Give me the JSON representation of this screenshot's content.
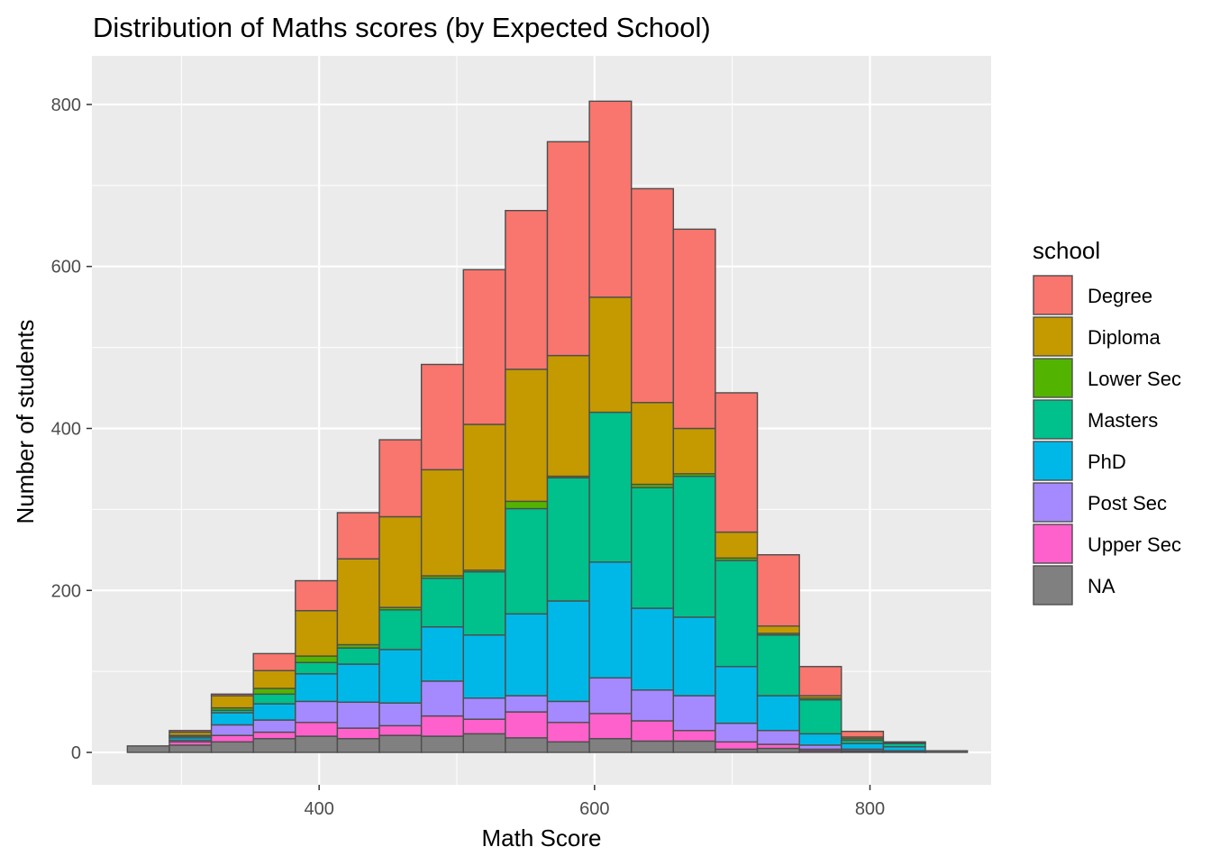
{
  "chart_data": {
    "type": "bar",
    "stacked": true,
    "title": "Distribution of Maths scores (by Expected School)",
    "xlabel": "Math Score",
    "ylabel": "Number of students",
    "xlim": [
      235,
      888
    ],
    "ylim": [
      -40,
      860
    ],
    "x_ticks": [
      400,
      600,
      800
    ],
    "y_ticks": [
      0,
      200,
      400,
      600,
      800
    ],
    "grid": true,
    "legend_title": "school",
    "legend_position": "right",
    "bin_width": 30.5,
    "x": [
      276.0,
      306.5,
      337.0,
      367.5,
      398.0,
      428.5,
      459.0,
      489.5,
      520.0,
      550.5,
      581.0,
      611.5,
      642.0,
      672.5,
      703.0,
      733.5,
      764.0,
      794.5,
      825.0,
      855.5
    ],
    "series": [
      {
        "name": "NA",
        "color": "#808080",
        "values": [
          8,
          9,
          13,
          17,
          20,
          17,
          21,
          20,
          23,
          18,
          13,
          17,
          14,
          14,
          4,
          5,
          2,
          1,
          1,
          2
        ]
      },
      {
        "name": "Upper Sec",
        "color": "#FF61CC",
        "values": [
          0,
          4,
          8,
          8,
          17,
          13,
          12,
          25,
          18,
          32,
          24,
          31,
          25,
          13,
          9,
          5,
          2,
          1,
          0,
          0
        ]
      },
      {
        "name": "Post Sec",
        "color": "#A58AFF",
        "values": [
          0,
          2,
          13,
          15,
          26,
          32,
          28,
          43,
          26,
          20,
          26,
          44,
          38,
          43,
          23,
          17,
          5,
          2,
          1,
          0
        ]
      },
      {
        "name": "PhD",
        "color": "#00B8E7",
        "values": [
          0,
          3,
          15,
          20,
          34,
          47,
          66,
          67,
          78,
          101,
          124,
          143,
          101,
          97,
          70,
          43,
          14,
          7,
          5,
          0
        ]
      },
      {
        "name": "Masters",
        "color": "#00C08B",
        "values": [
          0,
          2,
          3,
          12,
          14,
          20,
          49,
          60,
          78,
          130,
          152,
          185,
          149,
          174,
          131,
          75,
          42,
          4,
          4,
          0
        ]
      },
      {
        "name": "Lower Sec",
        "color": "#53B400",
        "values": [
          0,
          1,
          3,
          7,
          8,
          4,
          3,
          3,
          2,
          9,
          2,
          0,
          4,
          3,
          3,
          2,
          2,
          2,
          0,
          0
        ]
      },
      {
        "name": "Diploma",
        "color": "#C49A00",
        "values": [
          0,
          4,
          15,
          22,
          56,
          106,
          112,
          131,
          180,
          163,
          149,
          142,
          101,
          56,
          32,
          9,
          3,
          2,
          1,
          0
        ]
      },
      {
        "name": "Degree",
        "color": "#F8766D",
        "values": [
          0,
          2,
          2,
          21,
          37,
          57,
          95,
          130,
          191,
          196,
          264,
          242,
          264,
          246,
          172,
          88,
          36,
          7,
          1,
          0
        ]
      }
    ],
    "legend_order": [
      "Degree",
      "Diploma",
      "Lower Sec",
      "Masters",
      "PhD",
      "Post Sec",
      "Upper Sec",
      "NA"
    ],
    "panel_background": "#EBEBEB",
    "bar_outline": "#4D4D4D"
  }
}
